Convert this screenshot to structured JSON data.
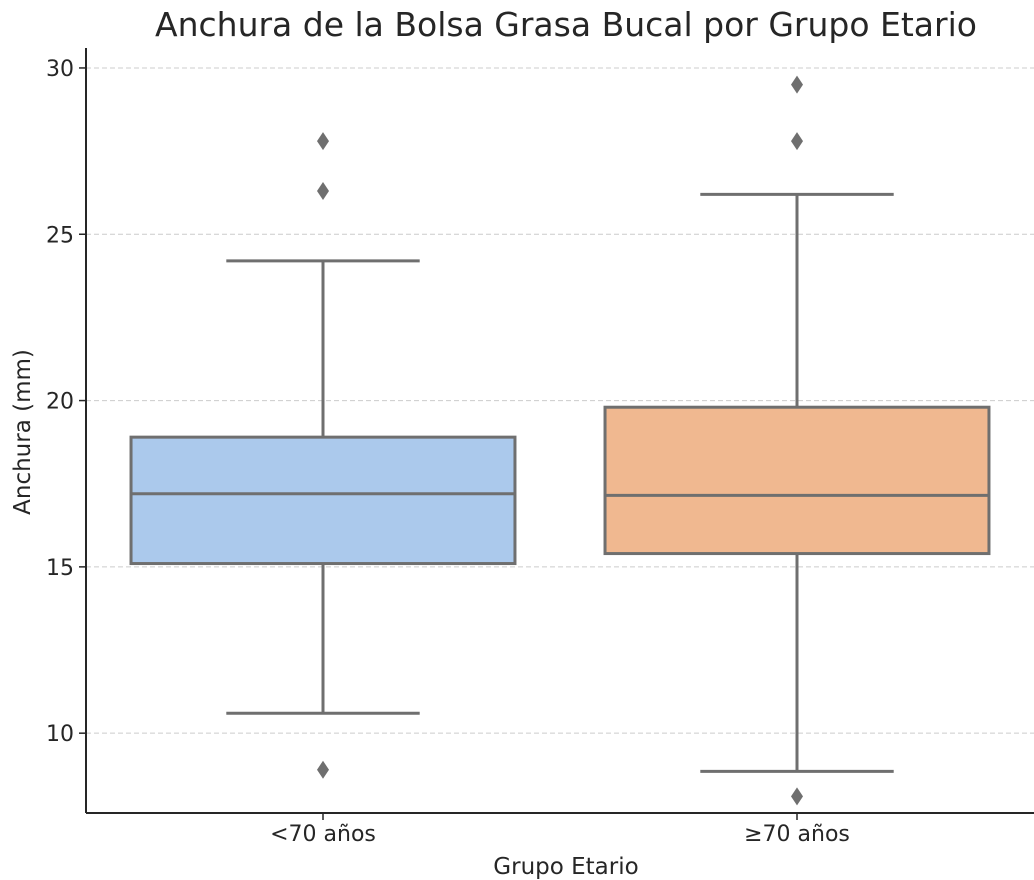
{
  "chart_data": {
    "type": "box",
    "title": "Anchura de la Bolsa Grasa Bucal por Grupo Etario",
    "xlabel": "Grupo Etario",
    "ylabel": "Anchura (mm)",
    "ylim": [
      7.6,
      30.6
    ],
    "yticks": [
      10,
      15,
      20,
      25,
      30
    ],
    "grid": "horizontal dashed",
    "categories": [
      "<70 años",
      "≥70 años"
    ],
    "boxes": [
      {
        "category": "<70 años",
        "color": "#abc9ec",
        "whisker_low": 10.6,
        "q1": 15.1,
        "median": 17.2,
        "q3": 18.9,
        "whisker_high": 24.2,
        "outliers": [
          8.9,
          26.3,
          27.8
        ]
      },
      {
        "category": "≥70 años",
        "color": "#f0b890",
        "whisker_low": 8.85,
        "q1": 15.4,
        "median": 17.15,
        "q3": 19.8,
        "whisker_high": 26.2,
        "outliers": [
          8.1,
          27.8,
          29.5
        ]
      }
    ]
  }
}
